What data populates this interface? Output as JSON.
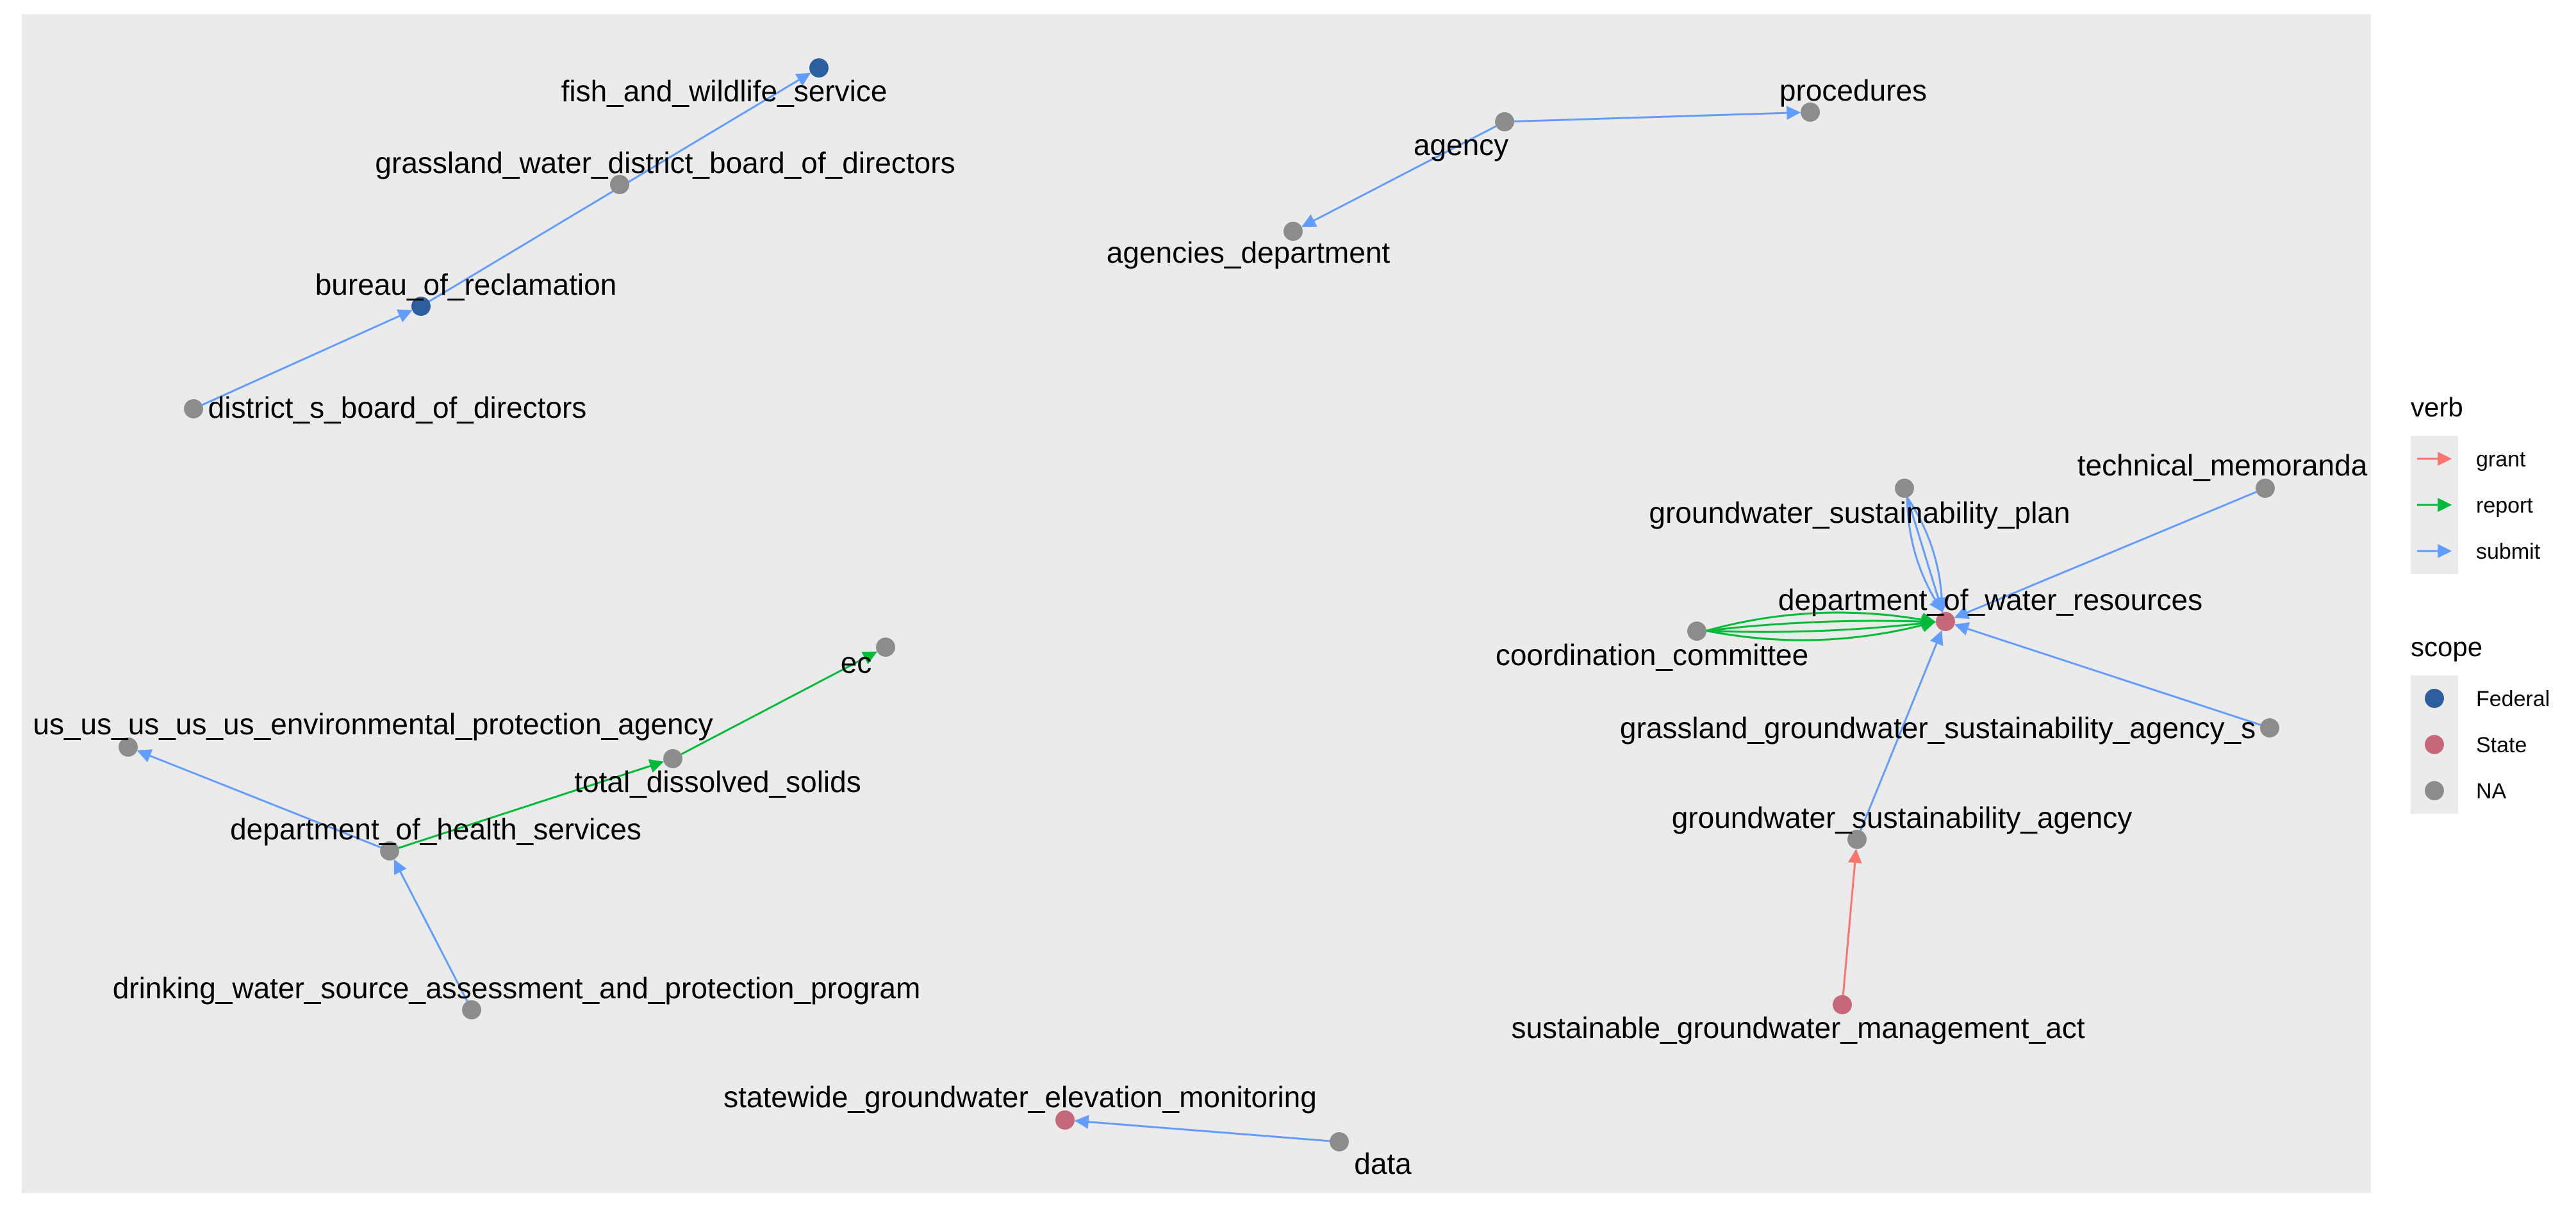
{
  "colors": {
    "panel": "#EBEBEB",
    "scope": {
      "Federal": "#2D5F9E",
      "State": "#C7687A",
      "NA": "#8C8C8C"
    },
    "verb": {
      "grant": "#F8766D",
      "report": "#00BA38",
      "submit": "#619CFF"
    }
  },
  "legend": {
    "verb": {
      "title": "verb",
      "items": [
        {
          "label": "grant",
          "key": "grant"
        },
        {
          "label": "report",
          "key": "report"
        },
        {
          "label": "submit",
          "key": "submit"
        }
      ]
    },
    "scope": {
      "title": "scope",
      "items": [
        {
          "label": "Federal",
          "key": "Federal"
        },
        {
          "label": "State",
          "key": "State"
        },
        {
          "label": "NA",
          "key": "NA"
        }
      ]
    }
  },
  "nodes": [
    {
      "id": "fish_and_wildlife_service",
      "label": "fish_and_wildlife_service",
      "scope": "Federal"
    },
    {
      "id": "grassland_water_district_board_of_directors",
      "label": "grassland_water_district_board_of_directors",
      "scope": "NA"
    },
    {
      "id": "bureau_of_reclamation",
      "label": "bureau_of_reclamation",
      "scope": "Federal"
    },
    {
      "id": "district_s_board_of_directors",
      "label": "district_s_board_of_directors",
      "scope": "NA"
    },
    {
      "id": "agency",
      "label": "agency",
      "scope": "NA"
    },
    {
      "id": "procedures",
      "label": "procedures",
      "scope": "NA"
    },
    {
      "id": "agencies_department",
      "label": "agencies_department",
      "scope": "NA"
    },
    {
      "id": "technical_memoranda",
      "label": "technical_memoranda",
      "scope": "NA"
    },
    {
      "id": "groundwater_sustainability_plan",
      "label": "groundwater_sustainability_plan",
      "scope": "NA"
    },
    {
      "id": "department_of_water_resources",
      "label": "department_of_water_resources",
      "scope": "State"
    },
    {
      "id": "coordination_committee",
      "label": "coordination_committee",
      "scope": "NA"
    },
    {
      "id": "grassland_groundwater_sustainability_agency_s",
      "label": "grassland_groundwater_sustainability_agency_s",
      "scope": "NA"
    },
    {
      "id": "groundwater_sustainability_agency",
      "label": "groundwater_sustainability_agency",
      "scope": "NA"
    },
    {
      "id": "sustainable_groundwater_management_act",
      "label": "sustainable_groundwater_management_act",
      "scope": "State"
    },
    {
      "id": "ec",
      "label": "ec",
      "scope": "NA"
    },
    {
      "id": "us_us_us_us_us_environmental_protection_agency",
      "label": "us_us_us_us_us_environmental_protection_agency",
      "scope": "NA"
    },
    {
      "id": "total_dissolved_solids",
      "label": "total_dissolved_solids",
      "scope": "NA"
    },
    {
      "id": "department_of_health_services",
      "label": "department_of_health_services",
      "scope": "NA"
    },
    {
      "id": "drinking_water_source_assessment_and_protection_program",
      "label": "drinking_water_source_assessment_and_protection_program",
      "scope": "NA"
    },
    {
      "id": "statewide_groundwater_elevation_monitoring",
      "label": "statewide_groundwater_elevation_monitoring",
      "scope": "State"
    },
    {
      "id": "data",
      "label": "data",
      "scope": "NA"
    }
  ],
  "edges": [
    {
      "from": "district_s_board_of_directors",
      "to": "bureau_of_reclamation",
      "verb": "submit"
    },
    {
      "from": "bureau_of_reclamation",
      "to": "fish_and_wildlife_service",
      "verb": "submit"
    },
    {
      "from": "agency",
      "to": "procedures",
      "verb": "submit"
    },
    {
      "from": "agency",
      "to": "agencies_department",
      "verb": "submit"
    },
    {
      "from": "groundwater_sustainability_plan",
      "to": "department_of_water_resources",
      "verb": "submit"
    },
    {
      "from": "groundwater_sustainability_plan",
      "to": "department_of_water_resources",
      "verb": "submit"
    },
    {
      "from": "groundwater_sustainability_plan",
      "to": "department_of_water_resources",
      "verb": "submit"
    },
    {
      "from": "coordination_committee",
      "to": "department_of_water_resources",
      "verb": "report"
    },
    {
      "from": "coordination_committee",
      "to": "department_of_water_resources",
      "verb": "report"
    },
    {
      "from": "coordination_committee",
      "to": "department_of_water_resources",
      "verb": "report"
    },
    {
      "from": "coordination_committee",
      "to": "department_of_water_resources",
      "verb": "report"
    },
    {
      "from": "technical_memoranda",
      "to": "department_of_water_resources",
      "verb": "submit"
    },
    {
      "from": "grassland_groundwater_sustainability_agency_s",
      "to": "department_of_water_resources",
      "verb": "submit"
    },
    {
      "from": "groundwater_sustainability_agency",
      "to": "department_of_water_resources",
      "verb": "submit"
    },
    {
      "from": "sustainable_groundwater_management_act",
      "to": "groundwater_sustainability_agency",
      "verb": "grant"
    },
    {
      "from": "department_of_health_services",
      "to": "us_us_us_us_us_environmental_protection_agency",
      "verb": "submit"
    },
    {
      "from": "department_of_health_services",
      "to": "total_dissolved_solids",
      "verb": "report"
    },
    {
      "from": "total_dissolved_solids",
      "to": "ec",
      "verb": "report"
    },
    {
      "from": "drinking_water_source_assessment_and_protection_program",
      "to": "department_of_health_services",
      "verb": "submit"
    },
    {
      "from": "data",
      "to": "statewide_groundwater_elevation_monitoring",
      "verb": "submit"
    }
  ]
}
